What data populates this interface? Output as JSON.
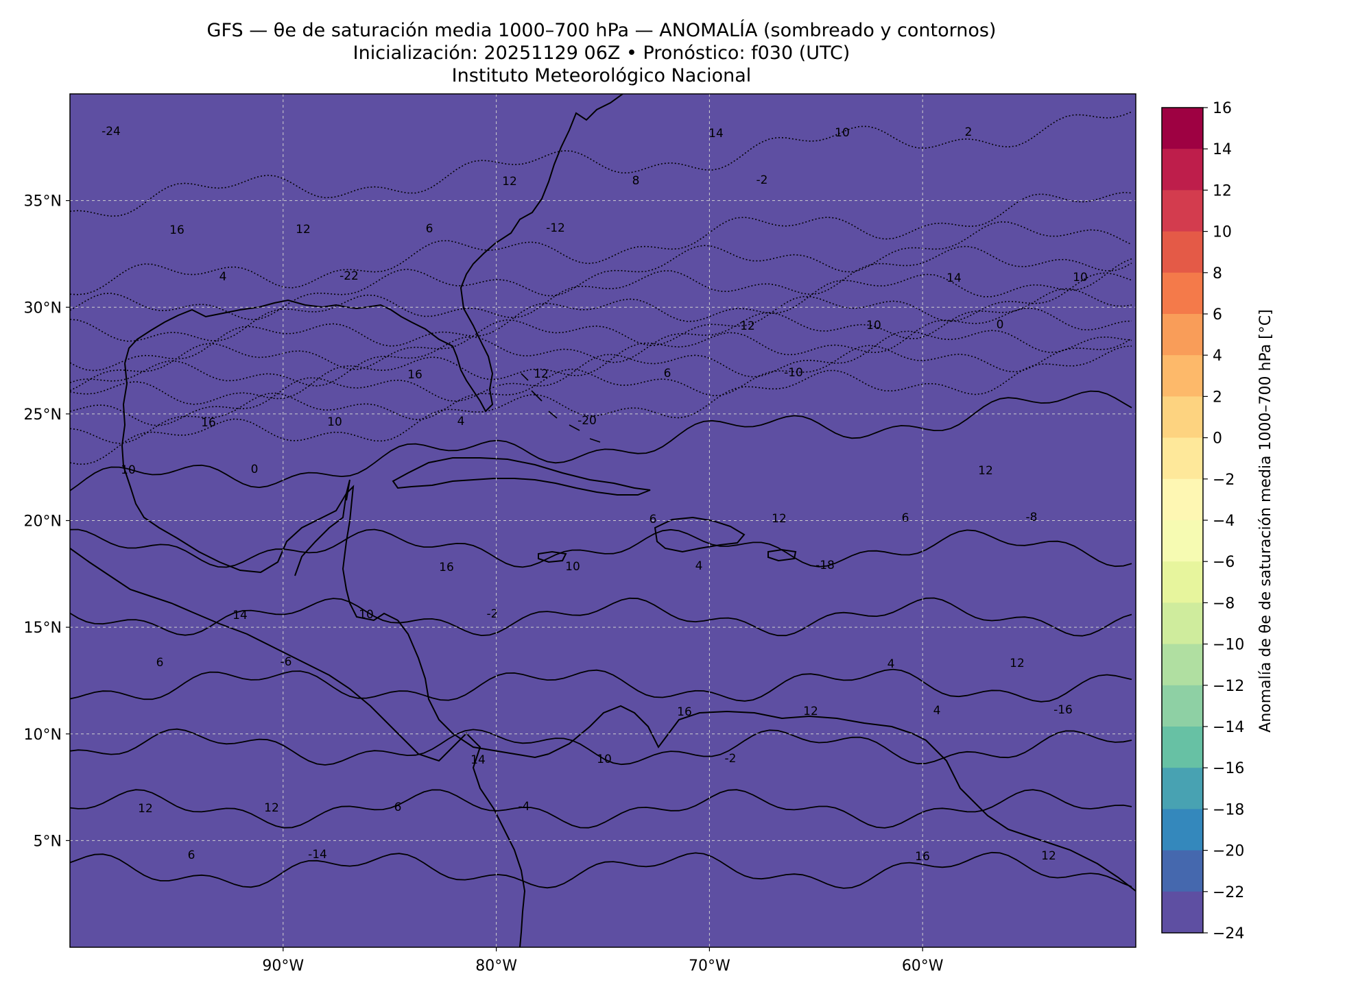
{
  "title": {
    "line1": "GFS — θe de saturación media 1000–700 hPa — ANOMALÍA (sombreado y contornos)",
    "line2": "Inicialización: 20251129 06Z   •   Pronóstico: f030 (UTC)",
    "line3": "Instituto Meteorológico Nacional"
  },
  "map": {
    "lon_range": [
      -100,
      -50
    ],
    "lat_range": [
      0,
      40
    ],
    "x_ticks": [
      "90°W",
      "80°W",
      "70°W",
      "60°W"
    ],
    "y_ticks": [
      "35°N",
      "30°N",
      "25°N",
      "20°N",
      "15°N",
      "10°N",
      "5°N"
    ],
    "grid": true,
    "contour_labels": [
      "-24",
      "-22",
      "-20",
      "-18",
      "-16",
      "-14",
      "-12",
      "-10",
      "-8",
      "-6",
      "-4",
      "-2",
      "0",
      "0",
      "-2",
      "-2",
      "2",
      "4",
      "4",
      "4",
      "4",
      "6",
      "6",
      "6",
      "6",
      "6",
      "6",
      "8",
      "10",
      "10",
      "10",
      "10",
      "10",
      "10",
      "10",
      "10",
      "12",
      "12",
      "12",
      "12",
      "12",
      "12",
      "12",
      "12",
      "12",
      "12",
      "14",
      "14",
      "14",
      "14",
      "16",
      "16",
      "16",
      "16",
      "16",
      "16",
      "6",
      "4",
      "12"
    ]
  },
  "colorbar": {
    "label": "Anomalía de θe de saturación media 1000–700 hPa [°C]",
    "ticks": [
      "16",
      "14",
      "12",
      "10",
      "8",
      "6",
      "4",
      "2",
      "0",
      "−2",
      "−4",
      "−6",
      "−8",
      "−10",
      "−12",
      "−14",
      "−16",
      "−18",
      "−20",
      "−22",
      "−24"
    ],
    "colors": [
      "#9e0142",
      "#be1e4b",
      "#d33c4e",
      "#e45a47",
      "#f47a4a",
      "#f99d59",
      "#fdb96a",
      "#fdd380",
      "#fee89a",
      "#fef7b3",
      "#f6fbb2",
      "#e7f59d",
      "#cfec9d",
      "#b0dfa1",
      "#8ed0a4",
      "#67c1a4",
      "#48a2b2",
      "#3488bc",
      "#4568ae",
      "#5e4fa2"
    ]
  }
}
